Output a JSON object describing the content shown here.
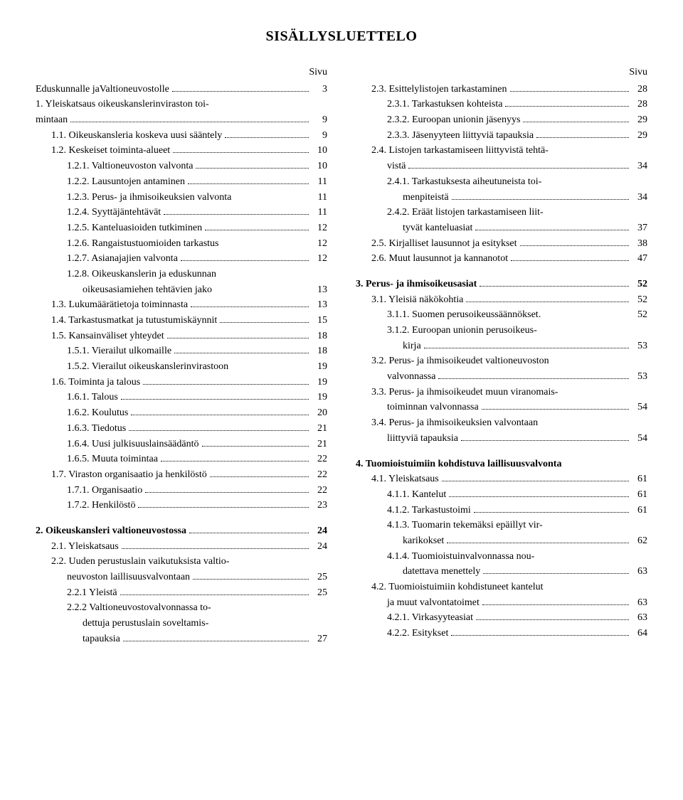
{
  "title": "SISÄLLYSLUETTELO",
  "page_label": "Sivu",
  "left": [
    {
      "num": "",
      "text": "Eduskunnalle jaValtioneuvostolle",
      "page": "3",
      "indent": 0
    },
    {
      "num": "1.",
      "text": "Yleiskatsaus oikeuskanslerinviraston toi-",
      "page": "",
      "indent": 0
    },
    {
      "num": "",
      "text": "mintaan",
      "page": "9",
      "indent": 1,
      "cont": true
    },
    {
      "num": "1.1.",
      "text": "Oikeuskansleria koskeva uusi sääntely",
      "page": "9",
      "indent": 1
    },
    {
      "num": "1.2.",
      "text": "Keskeiset toiminta-alueet",
      "page": "10",
      "indent": 1
    },
    {
      "num": "1.2.1.",
      "text": "Valtioneuvoston valvonta",
      "page": "10",
      "indent": 2
    },
    {
      "num": "1.2.2.",
      "text": "Lausuntojen antaminen",
      "page": "11",
      "indent": 2
    },
    {
      "num": "1.2.3.",
      "text": "Perus- ja ihmisoikeuksien valvonta",
      "page": "11",
      "indent": 2,
      "nodots": true
    },
    {
      "num": "1.2.4.",
      "text": "Syyttäjäntehtävät",
      "page": "11",
      "indent": 2
    },
    {
      "num": "1.2.5.",
      "text": "Kanteluasioiden tutkiminen",
      "page": "12",
      "indent": 2
    },
    {
      "num": "1.2.6.",
      "text": "Rangaistustuomioiden tarkastus",
      "page": "12",
      "indent": 2,
      "nodots": true
    },
    {
      "num": "1.2.7.",
      "text": "Asianajajien valvonta",
      "page": "12",
      "indent": 2
    },
    {
      "num": "1.2.8.",
      "text": "Oikeuskanslerin ja eduskunnan",
      "page": "",
      "indent": 2
    },
    {
      "num": "",
      "text": "oikeusasiamiehen tehtävien jako",
      "page": "13",
      "indent": 3,
      "cont": true,
      "nodots": true
    },
    {
      "num": "1.3.",
      "text": "Lukumäärätietoja toiminnasta",
      "page": "13",
      "indent": 1
    },
    {
      "num": "1.4.",
      "text": "Tarkastusmatkat ja tutustumiskäynnit",
      "page": "15",
      "indent": 1
    },
    {
      "num": "1.5.",
      "text": "Kansainväliset yhteydet",
      "page": "18",
      "indent": 1
    },
    {
      "num": "1.5.1.",
      "text": "Vierailut ulkomaille",
      "page": "18",
      "indent": 2
    },
    {
      "num": "1.5.2.",
      "text": "Vierailut oikeuskanslerinvirastoon",
      "page": "19",
      "indent": 2,
      "nodots": true
    },
    {
      "num": "1.6.",
      "text": "Toiminta ja talous",
      "page": "19",
      "indent": 1
    },
    {
      "num": "1.6.1.",
      "text": "Talous",
      "page": "19",
      "indent": 2
    },
    {
      "num": "1.6.2.",
      "text": "Koulutus",
      "page": "20",
      "indent": 2
    },
    {
      "num": "1.6.3.",
      "text": "Tiedotus",
      "page": "21",
      "indent": 2
    },
    {
      "num": "1.6.4.",
      "text": "Uusi julkisuuslainsäädäntö",
      "page": "21",
      "indent": 2
    },
    {
      "num": "1.6.5.",
      "text": "Muuta toimintaa",
      "page": "22",
      "indent": 2
    },
    {
      "num": "1.7.",
      "text": "Viraston organisaatio ja henkilöstö",
      "page": "22",
      "indent": 1
    },
    {
      "num": "1.7.1.",
      "text": "Organisaatio",
      "page": "22",
      "indent": 2
    },
    {
      "num": "1.7.2.",
      "text": "Henkilöstö",
      "page": "23",
      "indent": 2
    },
    {
      "spacer": true
    },
    {
      "num": "2.",
      "text": "Oikeuskansleri valtioneuvostossa",
      "page": "24",
      "indent": 0,
      "bold": true
    },
    {
      "num": "2.1.",
      "text": "Yleiskatsaus",
      "page": "24",
      "indent": 1
    },
    {
      "num": "2.2.",
      "text": "Uuden perustuslain vaikutuksista valtio-",
      "page": "",
      "indent": 1
    },
    {
      "num": "",
      "text": "neuvoston laillisuusvalvontaan",
      "page": "25",
      "indent": 2,
      "cont": true
    },
    {
      "num": "2.2.1",
      "text": "Yleistä",
      "page": "25",
      "indent": 2
    },
    {
      "num": "2.2.2",
      "text": "Valtioneuvostovalvonnassa to-",
      "page": "",
      "indent": 2
    },
    {
      "num": "",
      "text": "dettuja perustuslain soveltamis-",
      "page": "",
      "indent": 3,
      "cont": true
    },
    {
      "num": "",
      "text": "tapauksia",
      "page": "27",
      "indent": 3,
      "cont": true
    }
  ],
  "right": [
    {
      "num": "2.3.",
      "text": "Esittelylistojen tarkastaminen",
      "page": "28",
      "indent": 1
    },
    {
      "num": "2.3.1.",
      "text": "Tarkastuksen kohteista",
      "page": "28",
      "indent": 2
    },
    {
      "num": "2.3.2.",
      "text": "Euroopan unionin jäsenyys",
      "page": "29",
      "indent": 2
    },
    {
      "num": "2.3.3.",
      "text": "Jäsenyyteen liittyviä tapauksia",
      "page": "29",
      "indent": 2
    },
    {
      "num": "2.4.",
      "text": "Listojen tarkastamiseen liittyvistä tehtä-",
      "page": "",
      "indent": 1
    },
    {
      "num": "",
      "text": "vistä",
      "page": "34",
      "indent": 2,
      "cont": true
    },
    {
      "num": "2.4.1.",
      "text": "Tarkastuksesta aiheutuneista toi-",
      "page": "",
      "indent": 2
    },
    {
      "num": "",
      "text": "menpiteistä",
      "page": "34",
      "indent": 3,
      "cont": true
    },
    {
      "num": "2.4.2.",
      "text": "Eräät listojen tarkastamiseen liit-",
      "page": "",
      "indent": 2
    },
    {
      "num": "",
      "text": "tyvät kanteluasiat",
      "page": "37",
      "indent": 3,
      "cont": true
    },
    {
      "num": "2.5.",
      "text": "Kirjalliset lausunnot ja esitykset",
      "page": "38",
      "indent": 1
    },
    {
      "num": "2.6.",
      "text": "Muut lausunnot ja kannanotot",
      "page": "47",
      "indent": 1
    },
    {
      "spacer": true
    },
    {
      "num": "3.",
      "text": "Perus- ja ihmisoikeusasiat",
      "page": "52",
      "indent": 0,
      "bold": true
    },
    {
      "num": "3.1.",
      "text": "Yleisiä näkökohtia",
      "page": "52",
      "indent": 1
    },
    {
      "num": "3.1.1.",
      "text": "Suomen perusoikeussäännökset",
      "page": "52",
      "indent": 2,
      "sepdot": true
    },
    {
      "num": "3.1.2.",
      "text": "Euroopan unionin perusoikeus-",
      "page": "",
      "indent": 2
    },
    {
      "num": "",
      "text": "kirja",
      "page": "53",
      "indent": 3,
      "cont": true
    },
    {
      "num": "3.2.",
      "text": "Perus- ja ihmisoikeudet valtioneuvoston",
      "page": "",
      "indent": 1
    },
    {
      "num": "",
      "text": "valvonnassa",
      "page": "53",
      "indent": 2,
      "cont": true
    },
    {
      "num": "3.3.",
      "text": "Perus- ja ihmisoikeudet muun viranomais-",
      "page": "",
      "indent": 1
    },
    {
      "num": "",
      "text": "toiminnan valvonnassa",
      "page": "54",
      "indent": 2,
      "cont": true
    },
    {
      "num": "3.4.",
      "text": "Perus- ja ihmisoikeuksien valvontaan",
      "page": "",
      "indent": 1
    },
    {
      "num": "",
      "text": "liittyviä tapauksia",
      "page": "54",
      "indent": 2,
      "cont": true
    },
    {
      "spacer": true
    },
    {
      "num": "4.",
      "text": "Tuomioistuimiin kohdistuva laillisuusvalvonta",
      "page": "",
      "indent": 0,
      "bold": true,
      "nowrap": false
    },
    {
      "num": "4.1.",
      "text": "Yleiskatsaus",
      "page": "61",
      "indent": 1
    },
    {
      "num": "4.1.1.",
      "text": "Kantelut",
      "page": "61",
      "indent": 2
    },
    {
      "num": "4.1.2.",
      "text": "Tarkastustoimi",
      "page": "61",
      "indent": 2
    },
    {
      "num": "4.1.3.",
      "text": "Tuomarin tekemäksi epäillyt vir-",
      "page": "",
      "indent": 2
    },
    {
      "num": "",
      "text": "karikokset",
      "page": "62",
      "indent": 3,
      "cont": true
    },
    {
      "num": "4.1.4.",
      "text": "Tuomioistuinvalvonnassa nou-",
      "page": "",
      "indent": 2
    },
    {
      "num": "",
      "text": "datettava menettely",
      "page": "63",
      "indent": 3,
      "cont": true
    },
    {
      "num": "4.2.",
      "text": "Tuomioistuimiin kohdistuneet kantelut",
      "page": "",
      "indent": 1
    },
    {
      "num": "",
      "text": "ja muut valvontatoimet",
      "page": "63",
      "indent": 2,
      "cont": true
    },
    {
      "num": "4.2.1.",
      "text": "Virkasyyteasiat",
      "page": "63",
      "indent": 2
    },
    {
      "num": "4.2.2.",
      "text": "Esitykset",
      "page": "64",
      "indent": 2
    }
  ]
}
